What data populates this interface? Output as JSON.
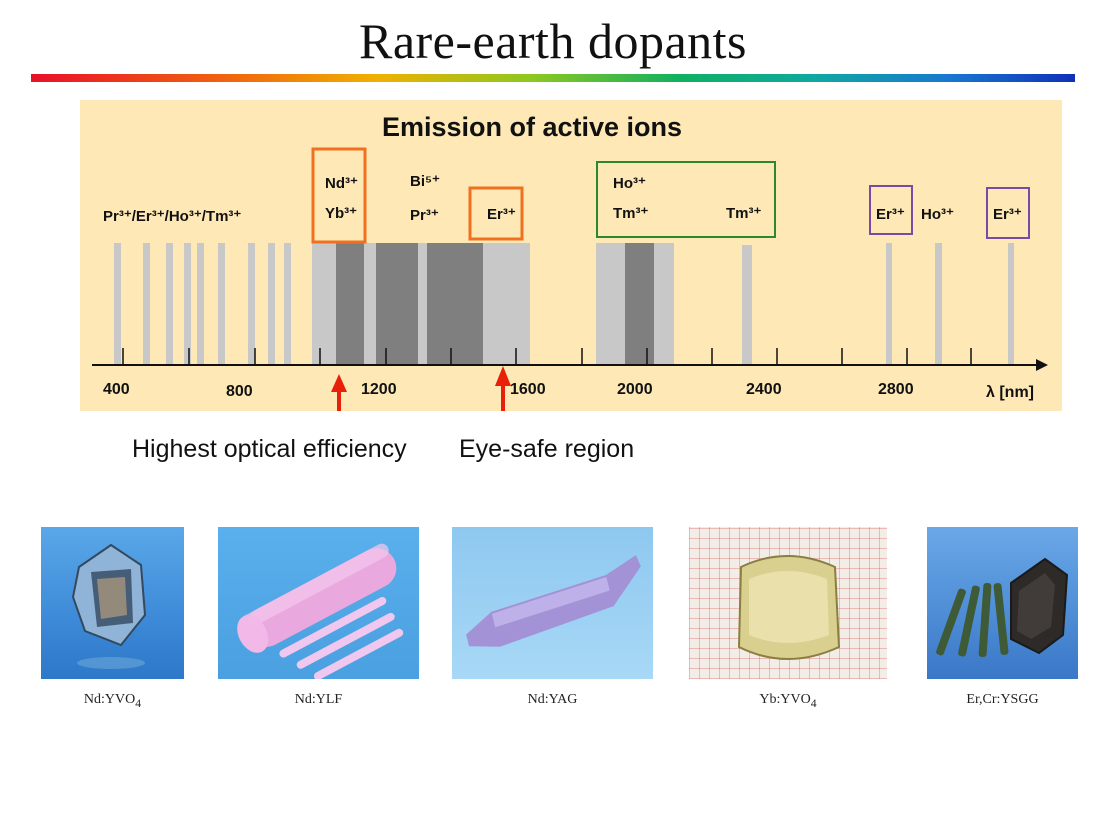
{
  "slide": {
    "title": "Rare-earth dopants"
  },
  "chart_data": {
    "type": "diagram",
    "title": "Emission of active ions",
    "x_axis": {
      "label": "λ [nm]",
      "tick_labels": [
        "400",
        "800",
        "1200",
        "1600",
        "2000",
        "2400",
        "2800"
      ]
    },
    "ion_labels": [
      {
        "id": "pr-er-ho-tm",
        "text": "Pr³⁺/Er³⁺/Ho³⁺/Tm³⁺"
      },
      {
        "id": "nd",
        "text": "Nd³⁺"
      },
      {
        "id": "yb",
        "text": "Yb³⁺"
      },
      {
        "id": "bi",
        "text": "Bi⁵⁺"
      },
      {
        "id": "pr",
        "text": "Pr³⁺"
      },
      {
        "id": "er-1550",
        "text": "Er³⁺"
      },
      {
        "id": "ho-2000",
        "text": "Ho³⁺"
      },
      {
        "id": "tm-2000",
        "text": "Tm³⁺"
      },
      {
        "id": "tm-2300",
        "text": "Tm³⁺"
      },
      {
        "id": "er-2750",
        "text": "Er³⁺"
      },
      {
        "id": "ho-2900",
        "text": "Ho³⁺"
      },
      {
        "id": "er-3000",
        "text": "Er³⁺"
      }
    ],
    "colors": {
      "panel": "#fde8b6",
      "light_band": "#c8c8c8",
      "dark_band": "#7f7f7f",
      "orange_box": "#f07020",
      "green_box": "#2a8a2a",
      "purple_box": "#7a4aa8",
      "arrow": "#e8200a"
    }
  },
  "annotations": {
    "left": "Highest optical efficiency",
    "right": "Eye-safe region"
  },
  "crystals": [
    {
      "id": "nd-yvo4",
      "name": "Nd:YVO",
      "sub": "4"
    },
    {
      "id": "nd-ylf",
      "name": "Nd:YLF",
      "sub": ""
    },
    {
      "id": "nd-yag",
      "name": "Nd:YAG",
      "sub": ""
    },
    {
      "id": "yb-yvo4",
      "name": "Yb:YVO",
      "sub": "4"
    },
    {
      "id": "er-cr-ysgg",
      "name": "Er,Cr:YSGG",
      "sub": ""
    }
  ]
}
